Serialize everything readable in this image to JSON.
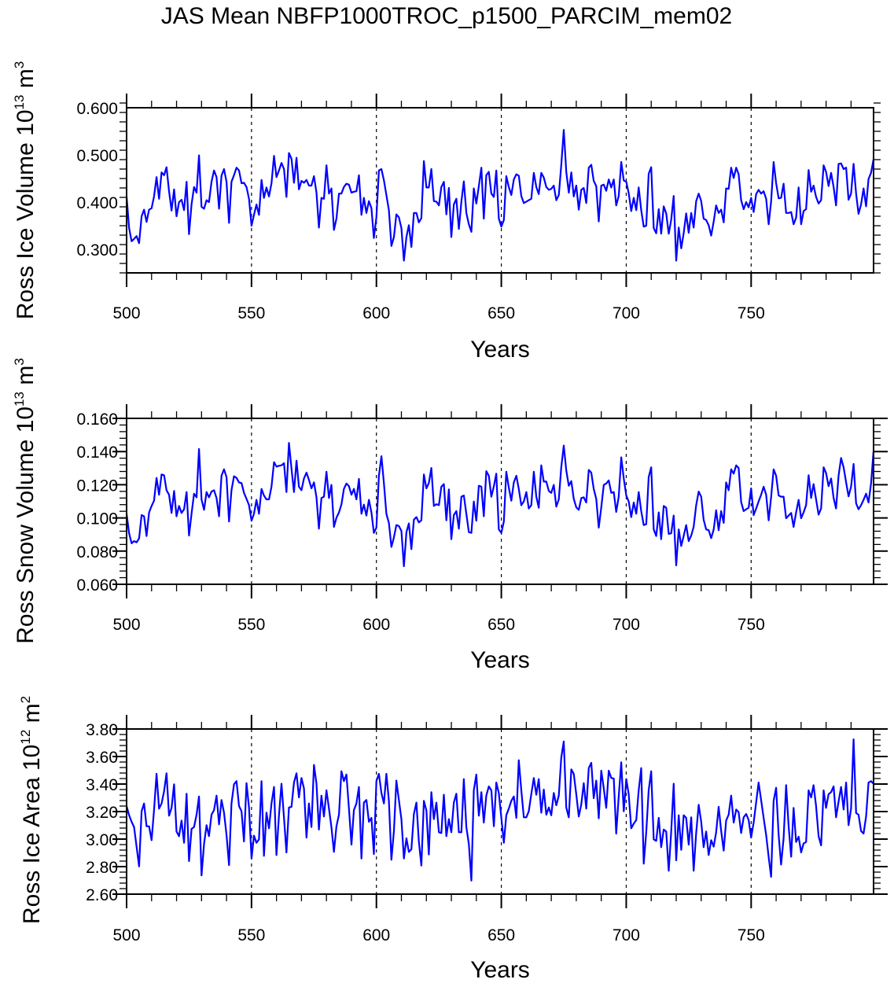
{
  "title": "JAS Mean NBFP1000TROC_p1500_PARCIM_mem02",
  "colors": {
    "series": "#0000ff",
    "axis": "#000000",
    "grid": "#000000"
  },
  "chart_data": [
    {
      "type": "line",
      "ylabel": {
        "text": "Ross Ice Volume 10",
        "exp": "13",
        "unit": " m",
        "unit_exp": "3"
      },
      "xlabel": "Years",
      "xlim": [
        500,
        799
      ],
      "ylim": [
        0.25,
        0.6
      ],
      "xticks": [
        500,
        550,
        600,
        650,
        700,
        750
      ],
      "xtick_labels": [
        "500",
        "550",
        "600",
        "650",
        "700",
        "750"
      ],
      "yticks": [
        0.3,
        0.4,
        0.5,
        0.6
      ],
      "ytick_labels": [
        "0.300",
        "0.400",
        "0.500",
        "0.600"
      ],
      "y_minor_step": 0.02,
      "vertical_dashed_lines": [
        550,
        600,
        650,
        700,
        750
      ],
      "x_start": 500,
      "values": [
        0.412,
        0.345,
        0.317,
        0.322,
        0.328,
        0.313,
        0.37,
        0.384,
        0.358,
        0.384,
        0.387,
        0.412,
        0.453,
        0.407,
        0.463,
        0.457,
        0.474,
        0.423,
        0.382,
        0.427,
        0.37,
        0.4,
        0.405,
        0.383,
        0.443,
        0.332,
        0.395,
        0.432,
        0.42,
        0.499,
        0.39,
        0.386,
        0.404,
        0.4,
        0.443,
        0.467,
        0.453,
        0.386,
        0.456,
        0.47,
        0.443,
        0.356,
        0.443,
        0.457,
        0.473,
        0.467,
        0.44,
        0.441,
        0.432,
        0.407,
        0.35,
        0.373,
        0.395,
        0.373,
        0.447,
        0.409,
        0.431,
        0.412,
        0.44,
        0.498,
        0.453,
        0.467,
        0.483,
        0.47,
        0.411,
        0.504,
        0.492,
        0.441,
        0.494,
        0.427,
        0.445,
        0.441,
        0.447,
        0.435,
        0.435,
        0.455,
        0.42,
        0.346,
        0.409,
        0.407,
        0.478,
        0.418,
        0.429,
        0.341,
        0.365,
        0.418,
        0.418,
        0.432,
        0.439,
        0.437,
        0.42,
        0.422,
        0.423,
        0.457,
        0.373,
        0.409,
        0.377,
        0.402,
        0.387,
        0.324,
        0.368,
        0.467,
        0.47,
        0.446,
        0.415,
        0.383,
        0.307,
        0.326,
        0.374,
        0.368,
        0.345,
        0.276,
        0.326,
        0.351,
        0.305,
        0.377,
        0.377,
        0.357,
        0.366,
        0.487,
        0.431,
        0.431,
        0.47,
        0.402,
        0.401,
        0.393,
        0.432,
        0.443,
        0.374,
        0.43,
        0.326,
        0.395,
        0.407,
        0.343,
        0.401,
        0.444,
        0.377,
        0.353,
        0.337,
        0.429,
        0.397,
        0.434,
        0.473,
        0.365,
        0.457,
        0.464,
        0.418,
        0.411,
        0.467,
        0.365,
        0.348,
        0.362,
        0.455,
        0.432,
        0.415,
        0.448,
        0.459,
        0.456,
        0.413,
        0.398,
        0.401,
        0.404,
        0.407,
        0.462,
        0.432,
        0.417,
        0.462,
        0.452,
        0.432,
        0.426,
        0.428,
        0.435,
        0.404,
        0.415,
        0.478,
        0.553,
        0.464,
        0.42,
        0.463,
        0.412,
        0.435,
        0.384,
        0.426,
        0.43,
        0.398,
        0.473,
        0.479,
        0.445,
        0.434,
        0.359,
        0.435,
        0.437,
        0.424,
        0.448,
        0.431,
        0.448,
        0.393,
        0.413,
        0.485,
        0.446,
        0.443,
        0.419,
        0.381,
        0.409,
        0.383,
        0.431,
        0.383,
        0.348,
        0.35,
        0.46,
        0.474,
        0.345,
        0.334,
        0.385,
        0.333,
        0.391,
        0.376,
        0.333,
        0.362,
        0.413,
        0.276,
        0.346,
        0.302,
        0.334,
        0.376,
        0.335,
        0.377,
        0.346,
        0.402,
        0.418,
        0.402,
        0.365,
        0.362,
        0.351,
        0.329,
        0.359,
        0.393,
        0.377,
        0.384,
        0.357,
        0.429,
        0.428,
        0.473,
        0.451,
        0.473,
        0.459,
        0.404,
        0.385,
        0.4,
        0.389,
        0.409,
        0.379,
        0.417,
        0.426,
        0.418,
        0.423,
        0.407,
        0.353,
        0.401,
        0.485,
        0.44,
        0.408,
        0.409,
        0.439,
        0.377,
        0.377,
        0.379,
        0.353,
        0.367,
        0.431,
        0.353,
        0.381,
        0.385,
        0.468,
        0.422,
        0.435,
        0.411,
        0.397,
        0.404,
        0.478,
        0.464,
        0.434,
        0.462,
        0.432,
        0.393,
        0.481,
        0.482,
        0.47,
        0.473,
        0.405,
        0.418,
        0.481,
        0.418,
        0.375,
        0.395,
        0.429,
        0.391,
        0.449,
        0.462,
        0.491
      ]
    },
    {
      "type": "line",
      "ylabel": {
        "text": "Ross Snow Volume 10",
        "exp": "13",
        "unit": " m",
        "unit_exp": "3"
      },
      "xlabel": "Years",
      "xlim": [
        500,
        799
      ],
      "ylim": [
        0.06,
        0.16
      ],
      "xticks": [
        500,
        550,
        600,
        650,
        700,
        750
      ],
      "xtick_labels": [
        "500",
        "550",
        "600",
        "650",
        "700",
        "750"
      ],
      "yticks": [
        0.06,
        0.08,
        0.1,
        0.12,
        0.14,
        0.16
      ],
      "ytick_labels": [
        "0.060",
        "0.080",
        "0.100",
        "0.120",
        "0.140",
        "0.160"
      ],
      "y_minor_step": 0.004,
      "vertical_dashed_lines": [
        550,
        600,
        650,
        700,
        750
      ],
      "x_start": 500,
      "values": [
        0.1025,
        0.0907,
        0.0847,
        0.086,
        0.0853,
        0.0877,
        0.1017,
        0.101,
        0.0891,
        0.1033,
        0.1072,
        0.1104,
        0.1241,
        0.114,
        0.1262,
        0.1257,
        0.1167,
        0.114,
        0.103,
        0.1162,
        0.101,
        0.1072,
        0.103,
        0.1052,
        0.1156,
        0.0894,
        0.1025,
        0.1146,
        0.1124,
        0.1415,
        0.1112,
        0.1049,
        0.1156,
        0.1124,
        0.1159,
        0.1167,
        0.112,
        0.101,
        0.1254,
        0.1293,
        0.1246,
        0.0978,
        0.1167,
        0.1251,
        0.1241,
        0.1214,
        0.121,
        0.1151,
        0.1115,
        0.1077,
        0.0983,
        0.1025,
        0.1109,
        0.1025,
        0.1175,
        0.1135,
        0.1112,
        0.1112,
        0.1188,
        0.1336,
        0.1309,
        0.1314,
        0.1317,
        0.133,
        0.1156,
        0.1452,
        0.1298,
        0.1156,
        0.1345,
        0.1188,
        0.1167,
        0.1238,
        0.1273,
        0.123,
        0.1178,
        0.1214,
        0.1124,
        0.0935,
        0.112,
        0.1128,
        0.1278,
        0.112,
        0.1199,
        0.0946,
        0.1001,
        0.1033,
        0.108,
        0.1175,
        0.1207,
        0.1191,
        0.114,
        0.1175,
        0.1112,
        0.1235,
        0.1025,
        0.108,
        0.1014,
        0.1109,
        0.1033,
        0.091,
        0.0941,
        0.1254,
        0.1372,
        0.1207,
        0.1025,
        0.097,
        0.0825,
        0.0883,
        0.0957,
        0.0951,
        0.0922,
        0.0709,
        0.0914,
        0.0967,
        0.0812,
        0.0989,
        0.1005,
        0.0973,
        0.0986,
        0.1262,
        0.1178,
        0.121,
        0.1301,
        0.1072,
        0.1083,
        0.1077,
        0.1188,
        0.1204,
        0.0986,
        0.1172,
        0.0872,
        0.1017,
        0.1041,
        0.0935,
        0.1128,
        0.1135,
        0.1025,
        0.0914,
        0.091,
        0.1099,
        0.0983,
        0.1194,
        0.1188,
        0.101,
        0.1282,
        0.1254,
        0.1128,
        0.1191,
        0.1267,
        0.0931,
        0.091,
        0.0978,
        0.1278,
        0.1183,
        0.1104,
        0.1214,
        0.1254,
        0.1175,
        0.1077,
        0.1099,
        0.1156,
        0.1057,
        0.1077,
        0.1278,
        0.1128,
        0.1061,
        0.1317,
        0.1219,
        0.1219,
        0.1162,
        0.1151,
        0.1199,
        0.1068,
        0.1112,
        0.1305,
        0.1436,
        0.1286,
        0.1194,
        0.1222,
        0.1115,
        0.1064,
        0.1049,
        0.112,
        0.1124,
        0.1093,
        0.1289,
        0.1273,
        0.1175,
        0.1115,
        0.0941,
        0.1064,
        0.1199,
        0.1207,
        0.1226,
        0.1151,
        0.1156,
        0.1036,
        0.1128,
        0.1365,
        0.1238,
        0.1135,
        0.1099,
        0.1005,
        0.1093,
        0.1025,
        0.1156,
        0.1041,
        0.0957,
        0.0962,
        0.1246,
        0.1305,
        0.0931,
        0.0891,
        0.1033,
        0.0872,
        0.1072,
        0.1061,
        0.0904,
        0.0907,
        0.1014,
        0.0714,
        0.0931,
        0.0831,
        0.0891,
        0.0957,
        0.086,
        0.0894,
        0.0946,
        0.1077,
        0.1159,
        0.1128,
        0.0989,
        0.0931,
        0.0926,
        0.0878,
        0.0931,
        0.1046,
        0.0926,
        0.1041,
        0.097,
        0.1214,
        0.1167,
        0.1293,
        0.1267,
        0.1317,
        0.1301,
        0.1096,
        0.1041,
        0.1052,
        0.1061,
        0.1178,
        0.1017,
        0.1057,
        0.1099,
        0.114,
        0.1188,
        0.114,
        0.0986,
        0.1124,
        0.1293,
        0.1254,
        0.1135,
        0.1128,
        0.1128,
        0.0998,
        0.1014,
        0.103,
        0.0946,
        0.1033,
        0.1109,
        0.0998,
        0.1033,
        0.1077,
        0.1257,
        0.112,
        0.1204,
        0.1112,
        0.102,
        0.1057,
        0.1305,
        0.127,
        0.1191,
        0.1238,
        0.112,
        0.1057,
        0.1254,
        0.1361,
        0.1305,
        0.1214,
        0.113,
        0.1188,
        0.1325,
        0.1088,
        0.1052,
        0.1077,
        0.1109,
        0.1146,
        0.1093,
        0.1207,
        0.1404
      ]
    },
    {
      "type": "line",
      "ylabel": {
        "text": "Ross Ice Area 10",
        "exp": "12",
        "unit": " m",
        "unit_exp": "2"
      },
      "xlabel": "Years",
      "xlim": [
        500,
        799
      ],
      "ylim": [
        2.6,
        3.8
      ],
      "xticks": [
        500,
        550,
        600,
        650,
        700,
        750
      ],
      "xtick_labels": [
        "500",
        "550",
        "600",
        "650",
        "700",
        "750"
      ],
      "yticks": [
        2.6,
        2.8,
        3.0,
        3.2,
        3.4,
        3.6,
        3.8
      ],
      "ytick_labels": [
        "2.60",
        "2.80",
        "3.00",
        "3.20",
        "3.40",
        "3.60",
        "3.80"
      ],
      "y_minor_step": 0.04,
      "vertical_dashed_lines": [
        550,
        600,
        650,
        700,
        750
      ],
      "x_start": 500,
      "values": [
        3.24,
        3.173,
        3.126,
        3.088,
        2.945,
        2.802,
        3.202,
        3.259,
        3.093,
        3.093,
        2.992,
        3.211,
        3.474,
        3.221,
        3.259,
        3.348,
        3.478,
        3.17,
        3.227,
        3.398,
        3.055,
        3.021,
        3.135,
        2.973,
        3.33,
        2.84,
        3.074,
        3.088,
        3.177,
        3.31,
        2.736,
        2.964,
        3.101,
        3.021,
        3.177,
        3.211,
        3.316,
        3.107,
        3.284,
        3.192,
        3.03,
        2.811,
        3.259,
        3.398,
        3.421,
        3.24,
        3.202,
        2.983,
        3.406,
        3.23,
        2.859,
        3.025,
        2.973,
        2.998,
        3.421,
        2.878,
        3.192,
        3.078,
        3.259,
        3.379,
        2.884,
        3.173,
        3.402,
        3.154,
        2.903,
        3.23,
        3.234,
        3.411,
        3.478,
        3.303,
        3.444,
        3.368,
        3.011,
        3.259,
        3.088,
        3.539,
        3.402,
        3.069,
        3.316,
        3.164,
        3.354,
        3.221,
        3.088,
        2.907,
        3.093,
        3.177,
        3.493,
        3.421,
        3.469,
        3.221,
        2.96,
        3.211,
        3.259,
        3.379,
        2.859,
        3.265,
        3.284,
        3.126,
        3.154,
        2.891,
        3.421,
        3.474,
        3.335,
        3.259,
        3.474,
        3.278,
        2.85,
        3.059,
        3.425,
        3.284,
        3.145,
        2.859,
        3.006,
        2.907,
        2.926,
        3.183,
        3.265,
        2.983,
        2.808,
        3.278,
        3.208,
        2.888,
        3.341,
        3.145,
        3.265,
        3.05,
        3.044,
        3.322,
        3.021,
        3.145,
        3.05,
        3.265,
        3.33,
        3.05,
        3.05,
        3.436,
        3.088,
        2.964,
        2.698,
        3.354,
        3.469,
        3.17,
        3.341,
        3.12,
        3.316,
        3.383,
        3.354,
        3.093,
        3.411,
        3.335,
        3.154,
        2.973,
        3.173,
        3.221,
        3.278,
        3.31,
        3.154,
        3.573,
        3.354,
        3.158,
        3.158,
        3.202,
        3.326,
        3.444,
        3.322,
        3.436,
        3.192,
        3.36,
        3.177,
        3.23,
        3.173,
        3.335,
        3.246,
        3.316,
        3.592,
        3.71,
        3.23,
        3.158,
        3.507,
        3.474,
        3.326,
        3.164,
        3.253,
        3.406,
        3.221,
        3.516,
        3.554,
        3.297,
        3.425,
        3.151,
        3.497,
        3.368,
        3.227,
        3.497,
        3.444,
        3.44,
        3.04,
        3.31,
        3.558,
        3.202,
        3.436,
        3.326,
        3.078,
        3.112,
        3.139,
        3.354,
        3.516,
        2.821,
        3.05,
        3.354,
        3.493,
        2.998,
        2.987,
        3.154,
        2.941,
        3.069,
        3.055,
        2.77,
        3.05,
        3.402,
        2.846,
        3.173,
        2.922,
        3.173,
        3.154,
        2.96,
        3.158,
        2.77,
        3.044,
        3.249,
        3.126,
        2.941,
        3.055,
        2.884,
        2.992,
        2.945,
        3.05,
        3.234,
        3.059,
        2.916,
        3.135,
        3.177,
        3.316,
        3.12,
        3.215,
        3.196,
        3.044,
        3.158,
        3.183,
        3.139,
        3.011,
        3.12,
        3.268,
        3.411,
        3.284,
        3.154,
        3.03,
        2.869,
        2.726,
        3.278,
        3.373,
        3.03,
        2.815,
        3.006,
        3.392,
        3.093,
        2.872,
        3.227,
        2.979,
        3.017,
        2.903,
        2.968,
        2.979,
        3.354,
        3.303,
        3.392,
        3.24,
        3.021,
        2.954,
        3.354,
        3.227,
        3.326,
        3.341,
        3.383,
        3.158,
        3.272,
        3.379,
        3.215,
        3.411,
        3.101,
        3.221,
        3.725,
        3.189,
        3.177,
        3.059,
        3.04,
        3.164,
        3.411,
        3.421,
        3.402
      ]
    }
  ]
}
